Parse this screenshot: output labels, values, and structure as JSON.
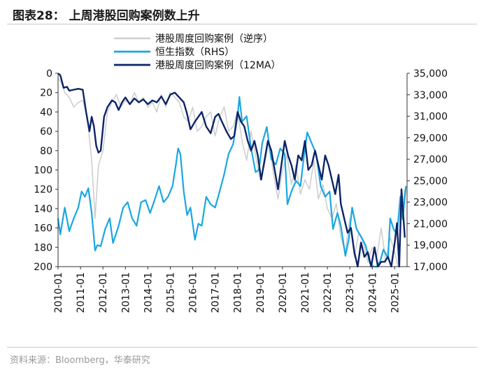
{
  "header": {
    "title": "图表28：  上周港股回购案例数上升"
  },
  "footer": {
    "source": "资料来源：Bloomberg，华泰研究"
  },
  "colors": {
    "weekly": "#cfcfcf",
    "index": "#1aa7e0",
    "ma": "#0c2467",
    "axis": "#333333"
  },
  "chart_data": {
    "type": "line",
    "title": "上周港股回购案例数上升",
    "legend": [
      "港股周度回购案例（逆序）",
      "恒生指数（RHS）",
      "港股周度回购案例（12MA）"
    ],
    "legend_position": "top-center",
    "x_ticks": [
      "2010-01",
      "2011-01",
      "2012-01",
      "2013-01",
      "2014-01",
      "2015-01",
      "2016-01",
      "2017-01",
      "2018-01",
      "2019-01",
      "2020-01",
      "2021-01",
      "2022-01",
      "2023-01",
      "2024-01",
      "2025-01"
    ],
    "x_range": [
      2010.0,
      2025.55
    ],
    "y_left": {
      "ticks": [
        "0",
        "20",
        "40",
        "60",
        "80",
        "100",
        "120",
        "140",
        "160",
        "180",
        "200"
      ],
      "range": [
        0,
        200
      ],
      "reversed": true
    },
    "y_right": {
      "ticks": [
        "35,000",
        "33,000",
        "31,000",
        "29,000",
        "27,000",
        "25,000",
        "23,000",
        "21,000",
        "19,000",
        "17,000"
      ],
      "range": [
        17000,
        35000
      ]
    },
    "series": [
      {
        "name": "港股周度回购案例（逆序）",
        "axis": "left",
        "style": "weekly",
        "x": [
          2010.0,
          2010.15,
          2010.3,
          2010.5,
          2010.7,
          2010.9,
          2011.1,
          2011.3,
          2011.5,
          2011.65,
          2011.8,
          2012.0,
          2012.2,
          2012.4,
          2012.6,
          2012.8,
          2013.0,
          2013.2,
          2013.4,
          2013.6,
          2013.8,
          2014.0,
          2014.2,
          2014.4,
          2014.6,
          2014.8,
          2015.0,
          2015.2,
          2015.4,
          2015.6,
          2015.8,
          2016.0,
          2016.2,
          2016.4,
          2016.6,
          2016.8,
          2017.0,
          2017.2,
          2017.4,
          2017.6,
          2017.8,
          2018.0,
          2018.2,
          2018.4,
          2018.6,
          2018.8,
          2019.0,
          2019.2,
          2019.4,
          2019.6,
          2019.8,
          2020.0,
          2020.2,
          2020.4,
          2020.6,
          2020.8,
          2021.0,
          2021.2,
          2021.4,
          2021.6,
          2021.8,
          2022.0,
          2022.2,
          2022.4,
          2022.6,
          2022.8,
          2023.0,
          2023.2,
          2023.4,
          2023.6,
          2023.8,
          2024.0,
          2024.2,
          2024.4,
          2024.6,
          2024.8,
          2025.0,
          2025.15,
          2025.3,
          2025.45
        ],
        "values": [
          5,
          10,
          20,
          25,
          35,
          30,
          28,
          45,
          90,
          150,
          95,
          80,
          40,
          30,
          22,
          35,
          28,
          32,
          20,
          30,
          25,
          35,
          30,
          40,
          22,
          35,
          20,
          25,
          30,
          45,
          50,
          35,
          60,
          55,
          45,
          40,
          65,
          45,
          35,
          60,
          55,
          40,
          70,
          90,
          60,
          85,
          110,
          95,
          70,
          105,
          130,
          100,
          85,
          115,
          95,
          125,
          110,
          120,
          90,
          130,
          115,
          140,
          150,
          135,
          170,
          185,
          150,
          190,
          165,
          175,
          195,
          180,
          190,
          160,
          195,
          170,
          185,
          200,
          145,
          120
        ]
      },
      {
        "name": "恒生指数（RHS）",
        "axis": "right",
        "style": "index",
        "x": [
          2010.0,
          2010.1,
          2010.3,
          2010.5,
          2010.7,
          2010.9,
          2011.05,
          2011.2,
          2011.35,
          2011.5,
          2011.65,
          2011.75,
          2011.9,
          2012.1,
          2012.3,
          2012.45,
          2012.7,
          2012.9,
          2013.1,
          2013.3,
          2013.5,
          2013.7,
          2013.9,
          2014.1,
          2014.3,
          2014.5,
          2014.7,
          2014.9,
          2015.1,
          2015.25,
          2015.35,
          2015.45,
          2015.6,
          2015.75,
          2015.9,
          2016.1,
          2016.25,
          2016.4,
          2016.6,
          2016.8,
          2017.0,
          2017.2,
          2017.4,
          2017.6,
          2017.8,
          2018.0,
          2018.08,
          2018.2,
          2018.4,
          2018.6,
          2018.8,
          2018.95,
          2019.1,
          2019.3,
          2019.5,
          2019.7,
          2019.9,
          2020.1,
          2020.22,
          2020.4,
          2020.6,
          2020.8,
          2020.95,
          2021.1,
          2021.3,
          2021.5,
          2021.7,
          2021.9,
          2022.1,
          2022.25,
          2022.45,
          2022.6,
          2022.8,
          2022.95,
          2023.1,
          2023.3,
          2023.5,
          2023.7,
          2023.9,
          2024.05,
          2024.2,
          2024.35,
          2024.5,
          2024.7,
          2024.8,
          2024.95,
          2025.1,
          2025.25,
          2025.35,
          2025.5
        ],
        "values": [
          21500,
          20000,
          22500,
          20300,
          21500,
          22500,
          24000,
          23500,
          24300,
          22000,
          18500,
          19000,
          18900,
          20500,
          21500,
          19200,
          20800,
          22500,
          23000,
          21500,
          20800,
          23000,
          23200,
          22000,
          23200,
          24500,
          23000,
          23500,
          24500,
          26500,
          28000,
          27500,
          24000,
          21800,
          22500,
          19500,
          21000,
          20800,
          23500,
          22800,
          22500,
          24000,
          25600,
          27500,
          28400,
          31000,
          32800,
          30500,
          31000,
          28000,
          25800,
          26000,
          28500,
          30000,
          27000,
          26500,
          28000,
          27500,
          22800,
          24000,
          25000,
          24500,
          27200,
          29500,
          28500,
          27500,
          24500,
          23500,
          24000,
          20500,
          22000,
          20800,
          18000,
          19500,
          22500,
          20500,
          19800,
          19000,
          17300,
          16500,
          16700,
          17500,
          18600,
          17800,
          21500,
          20500,
          20000,
          23500,
          21400,
          24500
        ]
      },
      {
        "name": "港股周度回购案例（12MA）",
        "axis": "left",
        "style": "ma",
        "x": [
          2010.0,
          2010.1,
          2010.25,
          2010.4,
          2010.5,
          2010.7,
          2010.9,
          2011.1,
          2011.25,
          2011.4,
          2011.5,
          2011.6,
          2011.7,
          2011.8,
          2011.9,
          2012.05,
          2012.2,
          2012.4,
          2012.55,
          2012.7,
          2012.85,
          2013.0,
          2013.2,
          2013.4,
          2013.6,
          2013.8,
          2014.0,
          2014.2,
          2014.4,
          2014.6,
          2014.8,
          2015.0,
          2015.2,
          2015.4,
          2015.6,
          2015.75,
          2015.9,
          2016.1,
          2016.25,
          2016.4,
          2016.6,
          2016.8,
          2017.0,
          2017.15,
          2017.3,
          2017.5,
          2017.7,
          2017.85,
          2018.0,
          2018.15,
          2018.3,
          2018.45,
          2018.6,
          2018.75,
          2018.9,
          2019.05,
          2019.2,
          2019.35,
          2019.5,
          2019.65,
          2019.8,
          2019.95,
          2020.1,
          2020.25,
          2020.4,
          2020.55,
          2020.7,
          2020.85,
          2021.0,
          2021.15,
          2021.3,
          2021.45,
          2021.6,
          2021.75,
          2021.9,
          2022.05,
          2022.2,
          2022.35,
          2022.5,
          2022.6,
          2022.75,
          2022.9,
          2023.05,
          2023.2,
          2023.35,
          2023.5,
          2023.65,
          2023.8,
          2023.95,
          2024.1,
          2024.25,
          2024.4,
          2024.55,
          2024.7,
          2024.85,
          2025.0,
          2025.1,
          2025.2,
          2025.3,
          2025.45
        ],
        "values": [
          0,
          2,
          15,
          14,
          18,
          17,
          16,
          17,
          40,
          60,
          45,
          55,
          75,
          82,
          80,
          45,
          35,
          28,
          30,
          38,
          30,
          25,
          32,
          26,
          30,
          27,
          32,
          28,
          30,
          24,
          32,
          22,
          20,
          25,
          30,
          42,
          58,
          50,
          45,
          40,
          55,
          62,
          45,
          42,
          50,
          60,
          68,
          65,
          40,
          50,
          55,
          70,
          80,
          70,
          85,
          110,
          90,
          70,
          80,
          100,
          120,
          95,
          70,
          85,
          95,
          110,
          85,
          90,
          70,
          100,
          95,
          80,
          95,
          110,
          85,
          95,
          110,
          125,
          105,
          135,
          150,
          165,
          160,
          185,
          200,
          175,
          190,
          185,
          200,
          180,
          200,
          195,
          195,
          190,
          200,
          175,
          155,
          200,
          120,
          170
        ]
      }
    ]
  }
}
